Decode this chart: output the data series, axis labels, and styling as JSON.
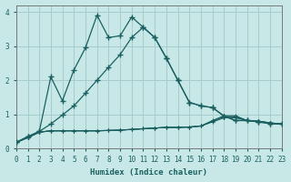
{
  "xlabel": "Humidex (Indice chaleur)",
  "background_color": "#c8e8e8",
  "grid_color": "#a8cccc",
  "line_color": "#1a6060",
  "xlim": [
    0,
    23
  ],
  "ylim": [
    0,
    4.2
  ],
  "xticks": [
    0,
    1,
    2,
    3,
    4,
    5,
    6,
    7,
    8,
    9,
    10,
    11,
    12,
    13,
    14,
    15,
    16,
    17,
    18,
    19,
    20,
    21,
    22,
    23
  ],
  "yticks": [
    0,
    1,
    2,
    3,
    4
  ],
  "line_spiky_x": [
    0,
    1,
    2,
    3,
    4,
    5,
    6,
    7,
    8,
    9,
    10,
    11,
    12,
    13,
    14,
    15,
    16,
    17,
    18,
    19,
    20,
    21,
    22,
    23
  ],
  "line_spiky_y": [
    0.18,
    0.35,
    0.5,
    2.1,
    1.4,
    2.3,
    2.95,
    3.9,
    3.25,
    3.3,
    3.85,
    3.55,
    3.25,
    2.65,
    2.0,
    1.35,
    1.25,
    1.2,
    0.95,
    0.82,
    0.82,
    0.78,
    0.73,
    0.72
  ],
  "line_smooth_x": [
    0,
    1,
    2,
    3,
    4,
    5,
    6,
    7,
    8,
    9,
    10,
    11,
    12,
    13,
    14,
    15,
    16,
    17,
    18,
    19,
    20,
    21,
    22,
    23
  ],
  "line_smooth_y": [
    0.18,
    0.35,
    0.5,
    0.72,
    0.98,
    1.25,
    1.62,
    2.0,
    2.38,
    2.75,
    3.25,
    3.55,
    3.25,
    2.65,
    2.0,
    1.35,
    1.25,
    1.2,
    0.95,
    0.82,
    0.82,
    0.78,
    0.73,
    0.72
  ],
  "line_flat1_x": [
    0,
    1,
    2,
    3,
    4,
    5,
    6,
    7,
    8,
    9,
    10,
    11,
    12,
    13,
    14,
    15,
    16,
    17,
    18,
    19,
    20,
    21,
    22,
    23
  ],
  "line_flat1_y": [
    0.18,
    0.32,
    0.48,
    0.52,
    0.52,
    0.52,
    0.52,
    0.52,
    0.53,
    0.54,
    0.56,
    0.58,
    0.6,
    0.62,
    0.62,
    0.63,
    0.66,
    0.78,
    0.9,
    0.9,
    0.82,
    0.8,
    0.75,
    0.72
  ],
  "line_flat2_x": [
    0,
    1,
    2,
    3,
    4,
    5,
    6,
    7,
    8,
    9,
    10,
    11,
    12,
    13,
    14,
    15,
    16,
    17,
    18,
    19,
    20,
    21,
    22,
    23
  ],
  "line_flat2_y": [
    0.18,
    0.32,
    0.48,
    0.52,
    0.52,
    0.52,
    0.52,
    0.52,
    0.53,
    0.54,
    0.56,
    0.58,
    0.6,
    0.62,
    0.62,
    0.63,
    0.66,
    0.8,
    0.93,
    0.93,
    0.82,
    0.8,
    0.75,
    0.72
  ],
  "line_flat3_x": [
    0,
    1,
    2,
    3,
    4,
    5,
    6,
    7,
    8,
    9,
    10,
    11,
    12,
    13,
    14,
    15,
    16,
    17,
    18,
    19,
    20,
    21,
    22,
    23
  ],
  "line_flat3_y": [
    0.18,
    0.32,
    0.48,
    0.52,
    0.52,
    0.52,
    0.52,
    0.52,
    0.53,
    0.54,
    0.56,
    0.58,
    0.6,
    0.62,
    0.62,
    0.63,
    0.66,
    0.82,
    0.96,
    0.96,
    0.82,
    0.8,
    0.75,
    0.72
  ]
}
